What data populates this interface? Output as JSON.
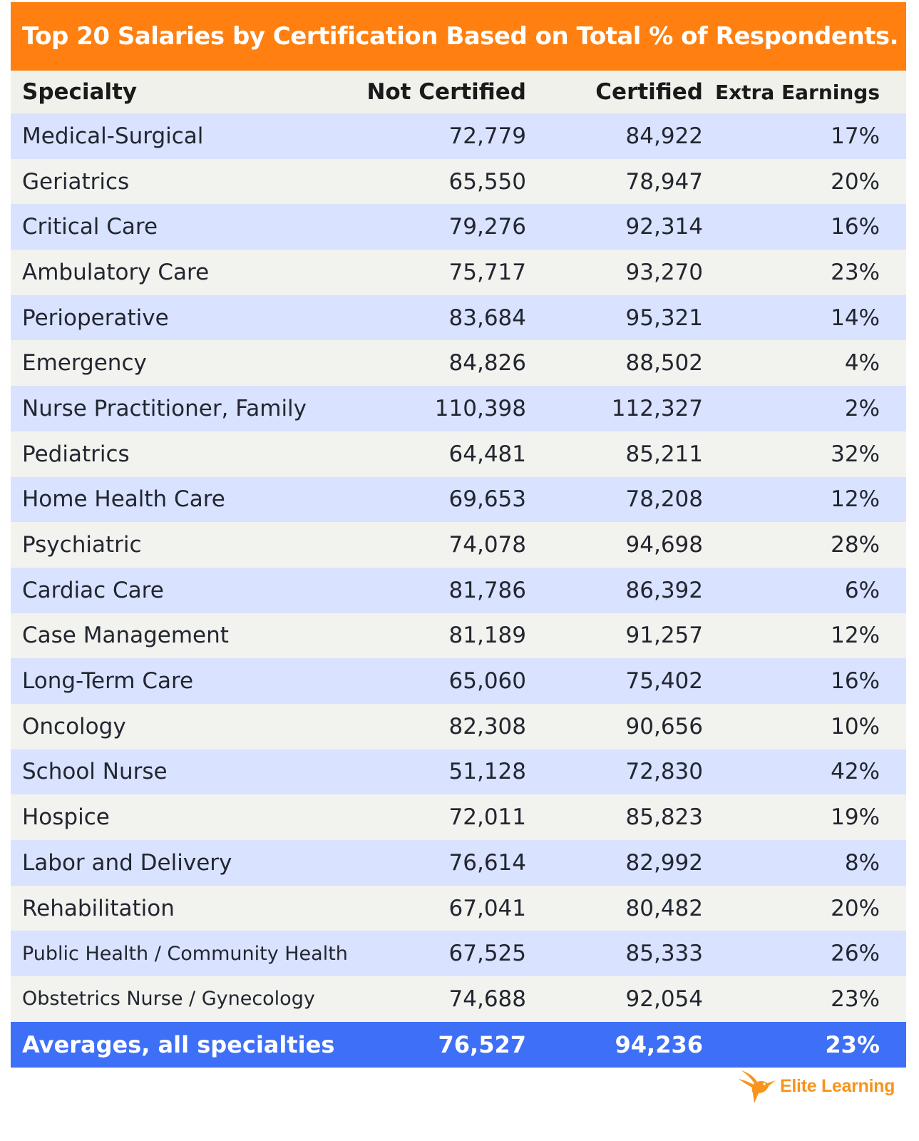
{
  "title": "Top 20 Salaries by Certification Based on Total % of Respondents.",
  "columns": {
    "specialty": "Specialty",
    "not_certified": "Not Certified",
    "certified": "Certified",
    "extra": "Extra Earnings"
  },
  "rows": [
    {
      "specialty": "Medical-Surgical",
      "not_certified": "72,779",
      "certified": "84,922",
      "extra": "17%"
    },
    {
      "specialty": "Geriatrics",
      "not_certified": "65,550",
      "certified": "78,947",
      "extra": "20%"
    },
    {
      "specialty": "Critical Care",
      "not_certified": "79,276",
      "certified": "92,314",
      "extra": "16%"
    },
    {
      "specialty": "Ambulatory Care",
      "not_certified": "75,717",
      "certified": "93,270",
      "extra": "23%"
    },
    {
      "specialty": "Perioperative",
      "not_certified": "83,684",
      "certified": "95,321",
      "extra": "14%"
    },
    {
      "specialty": "Emergency",
      "not_certified": "84,826",
      "certified": "88,502",
      "extra": "4%"
    },
    {
      "specialty": "Nurse Practitioner, Family",
      "not_certified": "110,398",
      "certified": "112,327",
      "extra": "2%"
    },
    {
      "specialty": "Pediatrics",
      "not_certified": "64,481",
      "certified": "85,211",
      "extra": "32%"
    },
    {
      "specialty": "Home Health Care",
      "not_certified": "69,653",
      "certified": "78,208",
      "extra": "12%"
    },
    {
      "specialty": "Psychiatric",
      "not_certified": "74,078",
      "certified": "94,698",
      "extra": "28%"
    },
    {
      "specialty": "Cardiac Care",
      "not_certified": "81,786",
      "certified": "86,392",
      "extra": "6%"
    },
    {
      "specialty": "Case Management",
      "not_certified": "81,189",
      "certified": "91,257",
      "extra": "12%"
    },
    {
      "specialty": "Long-Term Care",
      "not_certified": "65,060",
      "certified": "75,402",
      "extra": "16%"
    },
    {
      "specialty": "Oncology",
      "not_certified": "82,308",
      "certified": "90,656",
      "extra": "10%"
    },
    {
      "specialty": "School Nurse",
      "not_certified": "51,128",
      "certified": "72,830",
      "extra": "42%"
    },
    {
      "specialty": "Hospice",
      "not_certified": "72,011",
      "certified": "85,823",
      "extra": "19%"
    },
    {
      "specialty": "Labor and Delivery",
      "not_certified": "76,614",
      "certified": "82,992",
      "extra": "8%"
    },
    {
      "specialty": "Rehabilitation",
      "not_certified": "67,041",
      "certified": "80,482",
      "extra": "20%"
    },
    {
      "specialty": "Public Health / Community Health",
      "not_certified": "67,525",
      "certified": "85,333",
      "extra": "26%"
    },
    {
      "specialty": "Obstetrics Nurse / Gynecology",
      "not_certified": "74,688",
      "certified": "92,054",
      "extra": "23%"
    }
  ],
  "footer": {
    "label": "Averages, all specialties",
    "not_certified": "76,527",
    "certified": "94,236",
    "extra": "23%"
  },
  "logo": {
    "text": "Elite Learning",
    "icon": "hummingbird-icon",
    "color": "#f7941d"
  },
  "colors": {
    "title_bg": "#ff7f10",
    "row_blue": "#d9e2ff",
    "row_gray": "#f2f2ee",
    "footer_bg": "#3e6ff7"
  }
}
